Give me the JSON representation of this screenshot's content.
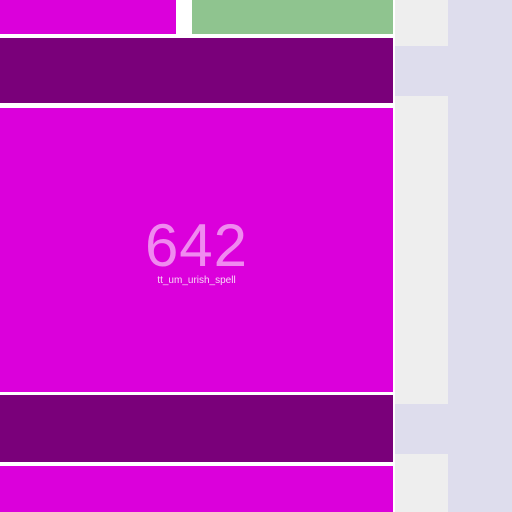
{
  "main_tile": {
    "value": "642",
    "caption": "tt_um_urish_spell"
  },
  "colors": {
    "magenta": "#db00db",
    "dark_magenta": "#7a007a",
    "green": "#8fc48f",
    "light_gray": "#eeeeee",
    "lavender": "#dedded"
  }
}
